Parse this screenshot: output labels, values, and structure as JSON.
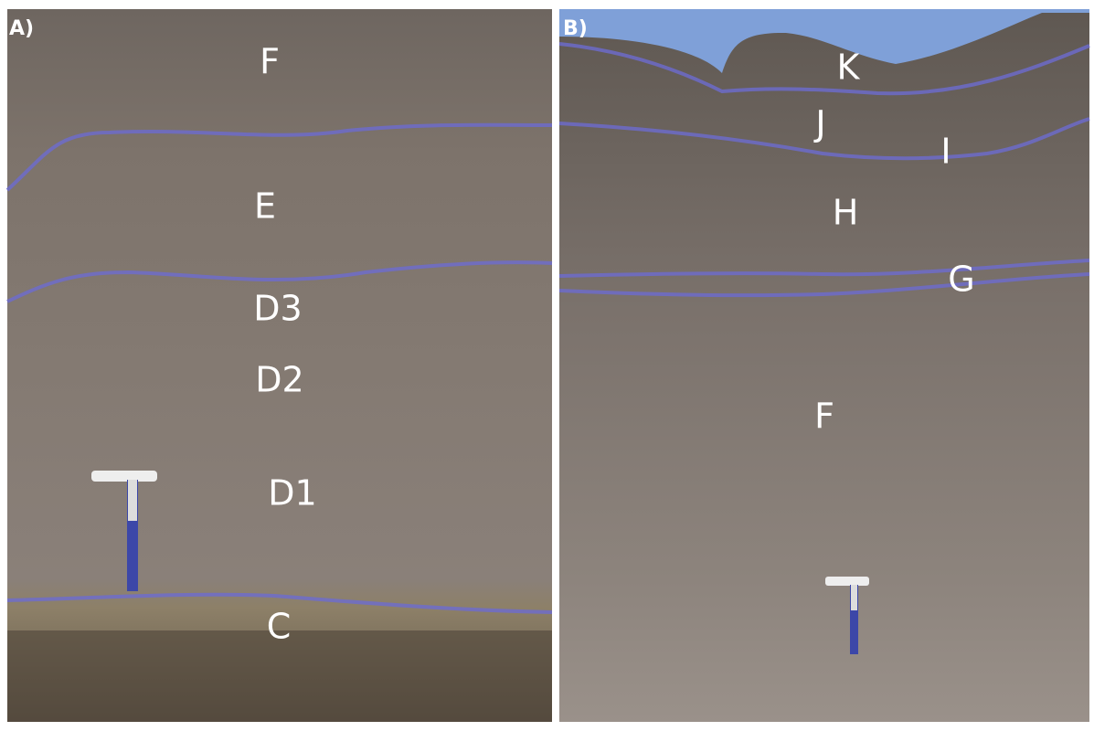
{
  "panels": [
    {
      "label": "A)",
      "units": [
        "F",
        "E",
        "D3",
        "D2",
        "D1",
        "C"
      ]
    },
    {
      "label": "B)",
      "units": [
        "K",
        "J",
        "I",
        "H",
        "G",
        "F"
      ]
    }
  ]
}
